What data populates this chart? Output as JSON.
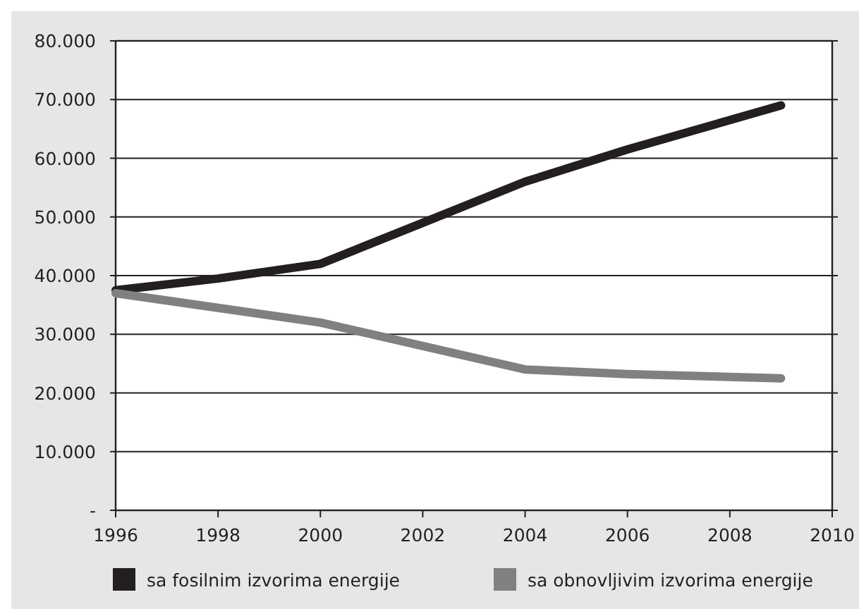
{
  "chart_data": {
    "type": "line",
    "x": [
      1996,
      1998,
      2000,
      2002,
      2004,
      2006,
      2009
    ],
    "series": [
      {
        "name": "sa fosilnim izvorima energije",
        "color": "#231f20",
        "values": [
          37500,
          39500,
          42000,
          49000,
          56000,
          61500,
          69000
        ]
      },
      {
        "name": "sa obnovljivim izvorima energije",
        "color": "#808080",
        "values": [
          37000,
          34500,
          32000,
          28000,
          24000,
          23200,
          22500
        ]
      }
    ],
    "xlim": [
      1996,
      2010
    ],
    "xticks": [
      1996,
      1998,
      2000,
      2002,
      2004,
      2006,
      2008,
      2010
    ],
    "ylim": [
      0,
      80000
    ],
    "yticks": [
      {
        "value": 0,
        "label": "-"
      },
      {
        "value": 10000,
        "label": "10.000"
      },
      {
        "value": 20000,
        "label": "20.000"
      },
      {
        "value": 30000,
        "label": "30.000"
      },
      {
        "value": 40000,
        "label": "40.000"
      },
      {
        "value": 50000,
        "label": "50.000"
      },
      {
        "value": 60000,
        "label": "60.000"
      },
      {
        "value": 70000,
        "label": "70.000"
      },
      {
        "value": 80000,
        "label": "80.000"
      }
    ],
    "grid": "y",
    "legend": "bottom",
    "marker": "none",
    "line_style": "solid"
  }
}
